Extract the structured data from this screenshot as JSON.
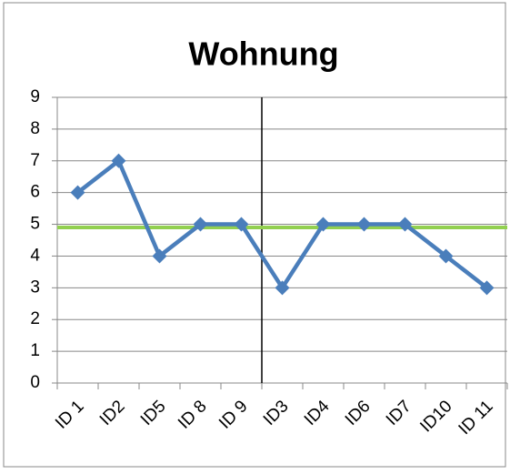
{
  "chart_data": {
    "type": "line",
    "title": "Wohnung",
    "categories": [
      "ID 1",
      "ID2",
      "ID5",
      "ID 8",
      "ID 9",
      "ID3",
      "ID4",
      "ID6",
      "ID7",
      "ID10",
      "ID 11"
    ],
    "series": [
      {
        "name": "Wohnung",
        "color": "#4a7ebb",
        "values": [
          6,
          7,
          4,
          5,
          5,
          3,
          5,
          5,
          5,
          4,
          3
        ]
      }
    ],
    "reference_line": {
      "value": 4.9,
      "color": "#92d050"
    },
    "ylim": [
      0,
      9
    ],
    "yticks": [
      0,
      1,
      2,
      3,
      4,
      5,
      6,
      7,
      8,
      9
    ],
    "grid": true
  }
}
